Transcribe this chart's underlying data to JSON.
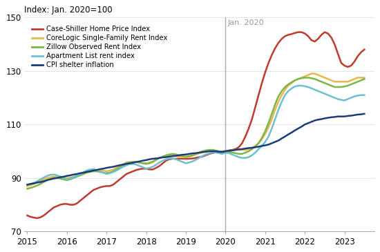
{
  "title": "Index: Jan. 2020=100",
  "ylim": [
    70,
    150
  ],
  "yticks": [
    70,
    90,
    110,
    130,
    150
  ],
  "vline_x": 2020.0,
  "vline_label": "Jan. 2020",
  "series": {
    "case_shiller": {
      "label": "Case-Shiller Home Price Index",
      "color": "#c0392b",
      "x": [
        2015.0,
        2015.083,
        2015.167,
        2015.25,
        2015.333,
        2015.417,
        2015.5,
        2015.583,
        2015.667,
        2015.75,
        2015.833,
        2015.917,
        2016.0,
        2016.083,
        2016.167,
        2016.25,
        2016.333,
        2016.417,
        2016.5,
        2016.583,
        2016.667,
        2016.75,
        2016.833,
        2016.917,
        2017.0,
        2017.083,
        2017.167,
        2017.25,
        2017.333,
        2017.417,
        2017.5,
        2017.583,
        2017.667,
        2017.75,
        2017.833,
        2017.917,
        2018.0,
        2018.083,
        2018.167,
        2018.25,
        2018.333,
        2018.417,
        2018.5,
        2018.583,
        2018.667,
        2018.75,
        2018.833,
        2018.917,
        2019.0,
        2019.083,
        2019.167,
        2019.25,
        2019.333,
        2019.417,
        2019.5,
        2019.583,
        2019.667,
        2019.75,
        2019.833,
        2019.917,
        2020.0,
        2020.083,
        2020.167,
        2020.25,
        2020.333,
        2020.417,
        2020.5,
        2020.583,
        2020.667,
        2020.75,
        2020.833,
        2020.917,
        2021.0,
        2021.083,
        2021.167,
        2021.25,
        2021.333,
        2021.417,
        2021.5,
        2021.583,
        2021.667,
        2021.75,
        2021.833,
        2021.917,
        2022.0,
        2022.083,
        2022.167,
        2022.25,
        2022.333,
        2022.417,
        2022.5,
        2022.583,
        2022.667,
        2022.75,
        2022.833,
        2022.917,
        2023.0,
        2023.083,
        2023.167,
        2023.25,
        2023.333,
        2023.417,
        2023.5
      ],
      "y": [
        76.0,
        75.5,
        75.2,
        75.0,
        75.3,
        76.0,
        77.0,
        78.0,
        79.0,
        79.5,
        80.0,
        80.3,
        80.3,
        80.0,
        80.0,
        80.5,
        81.5,
        82.5,
        83.5,
        84.5,
        85.5,
        86.0,
        86.5,
        86.8,
        87.0,
        87.0,
        87.5,
        88.5,
        89.5,
        90.5,
        91.5,
        92.0,
        92.5,
        93.0,
        93.3,
        93.5,
        93.5,
        93.2,
        93.2,
        93.8,
        94.5,
        95.5,
        96.5,
        97.0,
        97.2,
        97.2,
        97.2,
        97.2,
        97.2,
        97.2,
        97.3,
        97.5,
        97.8,
        98.0,
        98.5,
        99.0,
        99.3,
        99.6,
        99.8,
        100.0,
        100.0,
        100.3,
        100.5,
        100.8,
        101.5,
        103.0,
        105.5,
        108.5,
        112.0,
        116.5,
        121.0,
        125.5,
        129.5,
        133.0,
        136.0,
        138.5,
        140.5,
        142.0,
        143.0,
        143.5,
        143.8,
        144.2,
        144.5,
        144.5,
        144.0,
        143.0,
        141.5,
        141.0,
        142.0,
        143.5,
        144.5,
        144.0,
        142.5,
        140.0,
        136.5,
        133.0,
        132.0,
        131.5,
        132.0,
        133.5,
        135.5,
        137.0,
        138.0
      ]
    },
    "corelogic": {
      "label": "CoreLogic Single-Family Rent Index",
      "color": "#e8b84b",
      "x": [
        2015.0,
        2015.083,
        2015.167,
        2015.25,
        2015.333,
        2015.417,
        2015.5,
        2015.583,
        2015.667,
        2015.75,
        2015.833,
        2015.917,
        2016.0,
        2016.083,
        2016.167,
        2016.25,
        2016.333,
        2016.417,
        2016.5,
        2016.583,
        2016.667,
        2016.75,
        2016.833,
        2016.917,
        2017.0,
        2017.083,
        2017.167,
        2017.25,
        2017.333,
        2017.417,
        2017.5,
        2017.583,
        2017.667,
        2017.75,
        2017.833,
        2017.917,
        2018.0,
        2018.083,
        2018.167,
        2018.25,
        2018.333,
        2018.417,
        2018.5,
        2018.583,
        2018.667,
        2018.75,
        2018.833,
        2018.917,
        2019.0,
        2019.083,
        2019.167,
        2019.25,
        2019.333,
        2019.417,
        2019.5,
        2019.583,
        2019.667,
        2019.75,
        2019.833,
        2019.917,
        2020.0,
        2020.083,
        2020.167,
        2020.25,
        2020.333,
        2020.417,
        2020.5,
        2020.583,
        2020.667,
        2020.75,
        2020.833,
        2020.917,
        2021.0,
        2021.083,
        2021.167,
        2021.25,
        2021.333,
        2021.417,
        2021.5,
        2021.583,
        2021.667,
        2021.75,
        2021.833,
        2021.917,
        2022.0,
        2022.083,
        2022.167,
        2022.25,
        2022.333,
        2022.417,
        2022.5,
        2022.583,
        2022.667,
        2022.75,
        2022.833,
        2022.917,
        2023.0,
        2023.083,
        2023.167,
        2023.25,
        2023.333,
        2023.417,
        2023.5
      ],
      "y": [
        87.0,
        87.3,
        87.8,
        88.5,
        89.0,
        89.5,
        90.0,
        90.3,
        90.5,
        90.5,
        90.5,
        90.3,
        90.0,
        90.2,
        90.5,
        91.0,
        91.5,
        92.0,
        92.5,
        92.8,
        93.0,
        93.0,
        93.0,
        92.8,
        92.5,
        92.8,
        93.2,
        93.8,
        94.5,
        95.2,
        95.8,
        96.0,
        96.0,
        96.0,
        95.8,
        95.5,
        95.5,
        95.8,
        96.2,
        97.0,
        97.5,
        98.0,
        98.3,
        98.5,
        98.5,
        98.3,
        98.0,
        97.8,
        97.8,
        98.0,
        98.3,
        98.8,
        99.2,
        99.5,
        99.8,
        100.0,
        100.0,
        100.0,
        99.8,
        99.8,
        100.0,
        100.2,
        100.3,
        100.5,
        100.5,
        100.5,
        100.5,
        100.8,
        101.2,
        102.0,
        103.0,
        104.5,
        106.5,
        109.0,
        112.0,
        115.5,
        118.5,
        121.0,
        123.0,
        124.5,
        125.5,
        126.5,
        127.0,
        127.5,
        128.0,
        128.5,
        129.0,
        129.0,
        128.5,
        128.0,
        127.5,
        127.0,
        126.5,
        126.0,
        126.0,
        126.0,
        126.0,
        126.0,
        126.5,
        127.0,
        127.5,
        127.5,
        127.5
      ]
    },
    "zillow": {
      "label": "Zillow Observed Rent Index",
      "color": "#7ab648",
      "x": [
        2015.0,
        2015.083,
        2015.167,
        2015.25,
        2015.333,
        2015.417,
        2015.5,
        2015.583,
        2015.667,
        2015.75,
        2015.833,
        2015.917,
        2016.0,
        2016.083,
        2016.167,
        2016.25,
        2016.333,
        2016.417,
        2016.5,
        2016.583,
        2016.667,
        2016.75,
        2016.833,
        2016.917,
        2017.0,
        2017.083,
        2017.167,
        2017.25,
        2017.333,
        2017.417,
        2017.5,
        2017.583,
        2017.667,
        2017.75,
        2017.833,
        2017.917,
        2018.0,
        2018.083,
        2018.167,
        2018.25,
        2018.333,
        2018.417,
        2018.5,
        2018.583,
        2018.667,
        2018.75,
        2018.833,
        2018.917,
        2019.0,
        2019.083,
        2019.167,
        2019.25,
        2019.333,
        2019.417,
        2019.5,
        2019.583,
        2019.667,
        2019.75,
        2019.833,
        2019.917,
        2020.0,
        2020.083,
        2020.167,
        2020.25,
        2020.333,
        2020.417,
        2020.5,
        2020.583,
        2020.667,
        2020.75,
        2020.833,
        2020.917,
        2021.0,
        2021.083,
        2021.167,
        2021.25,
        2021.333,
        2021.417,
        2021.5,
        2021.583,
        2021.667,
        2021.75,
        2021.833,
        2021.917,
        2022.0,
        2022.083,
        2022.167,
        2022.25,
        2022.333,
        2022.417,
        2022.5,
        2022.583,
        2022.667,
        2022.75,
        2022.833,
        2022.917,
        2023.0,
        2023.083,
        2023.167,
        2023.25,
        2023.333,
        2023.417,
        2023.5
      ],
      "y": [
        86.0,
        86.3,
        86.7,
        87.2,
        87.8,
        88.5,
        89.2,
        89.7,
        90.0,
        90.0,
        89.8,
        89.5,
        89.2,
        89.5,
        90.0,
        90.5,
        91.0,
        91.5,
        92.0,
        92.3,
        92.5,
        92.5,
        92.3,
        92.0,
        91.8,
        92.0,
        92.5,
        93.2,
        94.0,
        94.8,
        95.5,
        95.8,
        96.0,
        96.0,
        95.8,
        95.5,
        95.3,
        95.5,
        96.0,
        96.8,
        97.5,
        98.0,
        98.5,
        98.8,
        99.0,
        98.8,
        98.5,
        98.2,
        98.0,
        98.2,
        98.5,
        99.0,
        99.5,
        100.0,
        100.3,
        100.5,
        100.5,
        100.3,
        100.0,
        99.8,
        100.0,
        99.8,
        99.5,
        99.3,
        99.0,
        99.0,
        99.5,
        100.0,
        100.8,
        101.8,
        103.0,
        105.0,
        107.5,
        110.5,
        114.0,
        117.5,
        120.5,
        122.5,
        124.0,
        125.0,
        125.8,
        126.5,
        127.0,
        127.3,
        127.5,
        127.5,
        127.3,
        127.0,
        126.5,
        126.0,
        125.5,
        125.0,
        124.5,
        124.0,
        124.0,
        124.0,
        124.2,
        124.5,
        125.0,
        125.5,
        126.0,
        126.5,
        127.0
      ]
    },
    "apartment_list": {
      "label": "Apartment List rent index",
      "color": "#6dbfcf",
      "x": [
        2015.0,
        2015.083,
        2015.167,
        2015.25,
        2015.333,
        2015.417,
        2015.5,
        2015.583,
        2015.667,
        2015.75,
        2015.833,
        2015.917,
        2016.0,
        2016.083,
        2016.167,
        2016.25,
        2016.333,
        2016.417,
        2016.5,
        2016.583,
        2016.667,
        2016.75,
        2016.833,
        2016.917,
        2017.0,
        2017.083,
        2017.167,
        2017.25,
        2017.333,
        2017.417,
        2017.5,
        2017.583,
        2017.667,
        2017.75,
        2017.833,
        2017.917,
        2018.0,
        2018.083,
        2018.167,
        2018.25,
        2018.333,
        2018.417,
        2018.5,
        2018.583,
        2018.667,
        2018.75,
        2018.833,
        2018.917,
        2019.0,
        2019.083,
        2019.167,
        2019.25,
        2019.333,
        2019.417,
        2019.5,
        2019.583,
        2019.667,
        2019.75,
        2019.833,
        2019.917,
        2020.0,
        2020.083,
        2020.167,
        2020.25,
        2020.333,
        2020.417,
        2020.5,
        2020.583,
        2020.667,
        2020.75,
        2020.833,
        2020.917,
        2021.0,
        2021.083,
        2021.167,
        2021.25,
        2021.333,
        2021.417,
        2021.5,
        2021.583,
        2021.667,
        2021.75,
        2021.833,
        2021.917,
        2022.0,
        2022.083,
        2022.167,
        2022.25,
        2022.333,
        2022.417,
        2022.5,
        2022.583,
        2022.667,
        2022.75,
        2022.833,
        2022.917,
        2023.0,
        2023.083,
        2023.167,
        2023.25,
        2023.333,
        2023.417,
        2023.5
      ],
      "y": [
        87.5,
        87.8,
        88.2,
        88.8,
        89.5,
        90.2,
        90.8,
        91.2,
        91.3,
        91.0,
        90.5,
        90.0,
        89.5,
        89.8,
        90.2,
        90.8,
        91.5,
        92.2,
        92.8,
        93.2,
        93.3,
        93.0,
        92.5,
        92.0,
        91.5,
        91.8,
        92.2,
        92.8,
        93.5,
        94.2,
        94.8,
        95.2,
        95.3,
        95.0,
        94.5,
        94.0,
        93.5,
        93.8,
        94.2,
        95.0,
        95.8,
        96.5,
        97.0,
        97.3,
        97.3,
        97.0,
        96.5,
        96.0,
        95.5,
        95.8,
        96.2,
        96.8,
        97.5,
        98.2,
        98.8,
        99.2,
        99.5,
        99.5,
        99.3,
        99.0,
        99.5,
        99.3,
        98.8,
        98.3,
        97.8,
        97.5,
        97.5,
        97.8,
        98.5,
        99.5,
        100.8,
        102.0,
        103.5,
        105.5,
        108.5,
        112.0,
        115.5,
        118.5,
        121.0,
        122.5,
        123.5,
        124.2,
        124.5,
        124.5,
        124.3,
        124.0,
        123.5,
        123.0,
        122.5,
        122.0,
        121.5,
        121.0,
        120.5,
        120.0,
        119.5,
        119.2,
        119.0,
        119.5,
        120.0,
        120.5,
        120.8,
        121.0,
        121.0
      ]
    },
    "cpi_shelter": {
      "label": "CPI shelter inflation",
      "color": "#1a3a7a",
      "x": [
        2015.0,
        2015.083,
        2015.167,
        2015.25,
        2015.333,
        2015.417,
        2015.5,
        2015.583,
        2015.667,
        2015.75,
        2015.833,
        2015.917,
        2016.0,
        2016.083,
        2016.167,
        2016.25,
        2016.333,
        2016.417,
        2016.5,
        2016.583,
        2016.667,
        2016.75,
        2016.833,
        2016.917,
        2017.0,
        2017.083,
        2017.167,
        2017.25,
        2017.333,
        2017.417,
        2017.5,
        2017.583,
        2017.667,
        2017.75,
        2017.833,
        2017.917,
        2018.0,
        2018.083,
        2018.167,
        2018.25,
        2018.333,
        2018.417,
        2018.5,
        2018.583,
        2018.667,
        2018.75,
        2018.833,
        2018.917,
        2019.0,
        2019.083,
        2019.167,
        2019.25,
        2019.333,
        2019.417,
        2019.5,
        2019.583,
        2019.667,
        2019.75,
        2019.833,
        2019.917,
        2020.0,
        2020.083,
        2020.167,
        2020.25,
        2020.333,
        2020.417,
        2020.5,
        2020.583,
        2020.667,
        2020.75,
        2020.833,
        2020.917,
        2021.0,
        2021.083,
        2021.167,
        2021.25,
        2021.333,
        2021.417,
        2021.5,
        2021.583,
        2021.667,
        2021.75,
        2021.833,
        2021.917,
        2022.0,
        2022.083,
        2022.167,
        2022.25,
        2022.333,
        2022.417,
        2022.5,
        2022.583,
        2022.667,
        2022.75,
        2022.833,
        2022.917,
        2023.0,
        2023.083,
        2023.167,
        2023.25,
        2023.333,
        2023.417,
        2023.5
      ],
      "y": [
        87.5,
        87.8,
        88.0,
        88.3,
        88.5,
        88.8,
        89.2,
        89.5,
        89.8,
        90.0,
        90.3,
        90.5,
        90.8,
        91.0,
        91.3,
        91.5,
        91.8,
        92.0,
        92.3,
        92.5,
        92.8,
        93.0,
        93.3,
        93.5,
        93.8,
        94.0,
        94.2,
        94.5,
        94.8,
        95.0,
        95.3,
        95.5,
        95.7,
        96.0,
        96.2,
        96.5,
        96.7,
        97.0,
        97.2,
        97.3,
        97.5,
        97.7,
        97.8,
        98.0,
        98.2,
        98.3,
        98.5,
        98.7,
        98.8,
        99.0,
        99.2,
        99.3,
        99.5,
        99.7,
        99.8,
        100.0,
        100.0,
        100.0,
        99.8,
        99.7,
        100.0,
        100.2,
        100.3,
        100.5,
        100.7,
        100.8,
        101.0,
        101.2,
        101.3,
        101.5,
        101.7,
        102.0,
        102.2,
        102.5,
        103.0,
        103.5,
        104.0,
        104.8,
        105.5,
        106.3,
        107.0,
        107.8,
        108.5,
        109.2,
        110.0,
        110.5,
        111.0,
        111.5,
        111.8,
        112.0,
        112.3,
        112.5,
        112.7,
        112.8,
        113.0,
        113.0,
        113.0,
        113.2,
        113.3,
        113.5,
        113.7,
        113.8,
        114.0
      ]
    }
  },
  "xticks": [
    2015,
    2016,
    2017,
    2018,
    2019,
    2020,
    2021,
    2022,
    2023
  ],
  "xlim": [
    2014.92,
    2023.75
  ],
  "bg_color": "#ffffff",
  "grid_color": "#e0e0e0"
}
